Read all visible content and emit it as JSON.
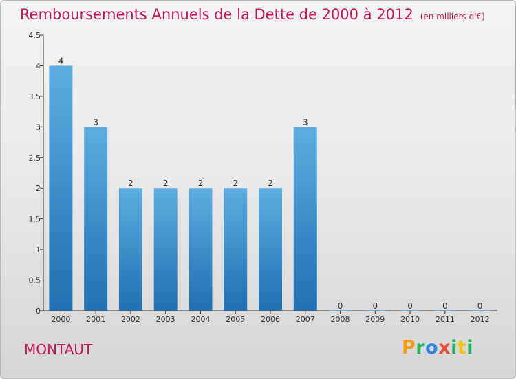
{
  "title": "Remboursements Annuels de la Dette de 2000 à 2012",
  "subtitle": "(en milliers d'€)",
  "commune": "MONTAUT",
  "logo": {
    "text": "Proxiti",
    "letters": [
      {
        "char": "P",
        "color": "#f39c12"
      },
      {
        "char": "r",
        "color": "#27ae60"
      },
      {
        "char": "o",
        "color": "#2e86de"
      },
      {
        "char": "x",
        "color": "#e74c3c"
      },
      {
        "char": "i",
        "color": "#27ae60"
      },
      {
        "char": "t",
        "color": "#f1c40f"
      },
      {
        "char": "i",
        "color": "#27ae60"
      }
    ]
  },
  "colors": {
    "bar_top": "#5dade2",
    "bar_bottom": "#1f6fb2",
    "title": "#c2185b",
    "axis": "#333333"
  },
  "chart_data": {
    "type": "bar",
    "categories": [
      "2000",
      "2001",
      "2002",
      "2003",
      "2004",
      "2005",
      "2006",
      "2007",
      "2008",
      "2009",
      "2010",
      "2011",
      "2012"
    ],
    "values": [
      4,
      3,
      2,
      2,
      2,
      2,
      2,
      3,
      0,
      0,
      0,
      0,
      0
    ],
    "data_labels": [
      "4",
      "3",
      "2",
      "2",
      "2",
      "2",
      "2",
      "3",
      "0",
      "0",
      "0",
      "0",
      "0"
    ],
    "y_ticks": [
      0,
      0.5,
      1,
      1.5,
      2,
      2.5,
      3,
      3.5,
      4,
      4.5
    ],
    "y_tick_labels": [
      "0",
      "0.5",
      "1",
      "1.5",
      "2",
      "2.5",
      "3",
      "3.5",
      "4",
      "4.5"
    ],
    "ylim": [
      0,
      4.5
    ],
    "grid": false,
    "xlabel": "",
    "ylabel": ""
  }
}
